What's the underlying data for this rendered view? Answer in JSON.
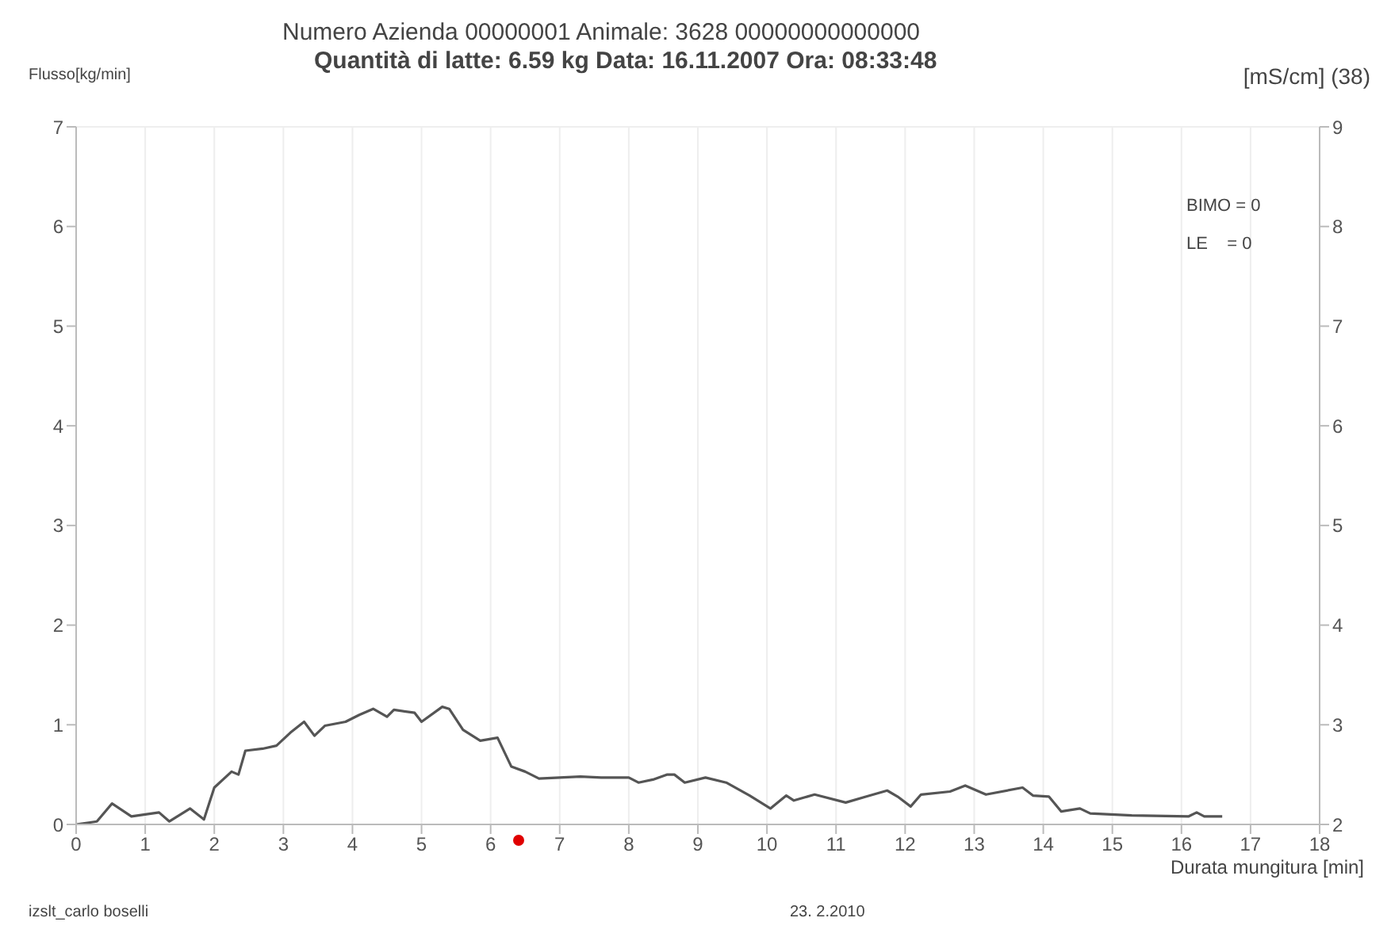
{
  "chart_data": {
    "type": "line",
    "title": "Numero Azienda 00000001    Animale: 3628    00000000000000",
    "subtitle": "Quantità di latte: 6.59 kg    Data: 16.11.2007    Ora: 08:33:48",
    "ylabel": "Flusso[kg/min]",
    "y2label": "[mS/cm] (38)",
    "xlabel": "Durata mungitura [min]",
    "annotations": [
      "BIMO = 0",
      "LE    = 0",
      "izslt_carlo boselli",
      "23. 2.2010"
    ],
    "series": [
      {
        "color": "#555555",
        "x": [
          0,
          0.3,
          0.52,
          0.8,
          1.0,
          1.2,
          1.35,
          1.65,
          1.85,
          2.0,
          2.25,
          2.35,
          2.45,
          2.7,
          2.9,
          3.1,
          3.3,
          3.45,
          3.6,
          3.9,
          4.1,
          4.3,
          4.5,
          4.6,
          4.9,
          5.0,
          5.3,
          5.4,
          5.6,
          5.85,
          6.1,
          6.3,
          6.5,
          6.7,
          7.0,
          7.3,
          7.6,
          8.0,
          8.14,
          8.35,
          8.55,
          8.66,
          8.81,
          9.11,
          9.41,
          9.75,
          10.05,
          10.28,
          10.39,
          10.69,
          11.14,
          11.44,
          11.74,
          11.89,
          12.08,
          12.23,
          12.65,
          12.87,
          13.17,
          13.7,
          13.85,
          14.08,
          14.26,
          14.53,
          14.68,
          15.28,
          16.1,
          16.22,
          16.33,
          16.59
        ],
        "values": [
          0,
          0.03,
          0.21,
          0.08,
          0.1,
          0.12,
          0.03,
          0.16,
          0.05,
          0.37,
          0.53,
          0.5,
          0.74,
          0.76,
          0.79,
          0.92,
          1.03,
          0.89,
          0.99,
          1.03,
          1.1,
          1.16,
          1.08,
          1.15,
          1.12,
          1.03,
          1.18,
          1.16,
          0.95,
          0.84,
          0.87,
          0.58,
          0.53,
          0.46,
          0.47,
          0.48,
          0.47,
          0.47,
          0.42,
          0.45,
          0.5,
          0.5,
          0.42,
          0.47,
          0.42,
          0.29,
          0.16,
          0.29,
          0.24,
          0.3,
          0.22,
          0.28,
          0.34,
          0.28,
          0.18,
          0.3,
          0.33,
          0.39,
          0.3,
          0.37,
          0.29,
          0.28,
          0.13,
          0.16,
          0.11,
          0.09,
          0.08,
          0.12,
          0.08,
          0.08
        ]
      }
    ],
    "xlim": [
      0,
      18
    ],
    "xticks": [
      0,
      1,
      2,
      3,
      4,
      5,
      6,
      7,
      8,
      9,
      10,
      11,
      12,
      13,
      14,
      15,
      16,
      17,
      18
    ],
    "ylim": [
      0,
      7
    ],
    "yticks": [
      0,
      1,
      2,
      3,
      4,
      5,
      6,
      7
    ],
    "y2lim": [
      2,
      9
    ],
    "y2ticks": [
      2,
      3,
      4,
      5,
      6,
      7,
      8,
      9
    ],
    "grid": true,
    "marker": "none",
    "line_style": "solid",
    "legend": false
  }
}
